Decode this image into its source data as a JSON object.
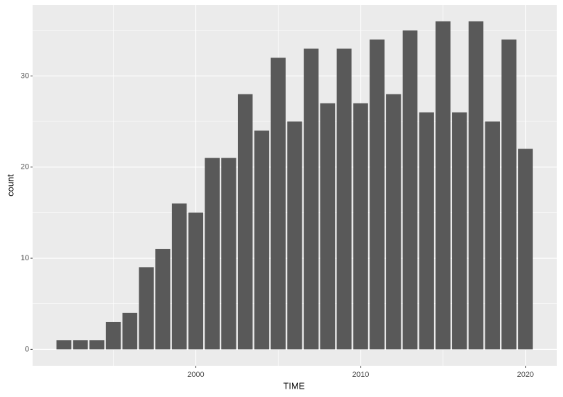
{
  "chart_data": {
    "type": "bar",
    "xlabel": "TIME",
    "ylabel": "count",
    "x": [
      1992,
      1993,
      1994,
      1995,
      1996,
      1997,
      1998,
      1999,
      2000,
      2001,
      2002,
      2003,
      2004,
      2005,
      2006,
      2007,
      2008,
      2009,
      2010,
      2011,
      2012,
      2013,
      2014,
      2015,
      2016,
      2017,
      2018,
      2019,
      2020
    ],
    "values": [
      1,
      1,
      1,
      3,
      4,
      9,
      11,
      16,
      15,
      21,
      21,
      28,
      24,
      32,
      25,
      33,
      27,
      33,
      27,
      34,
      28,
      35,
      26,
      36,
      26,
      36,
      25,
      34,
      22
    ],
    "color": "#595959",
    "xlim": [
      1990.1,
      2021.9
    ],
    "xticks": [
      2000,
      2010,
      2020
    ],
    "xminor": [
      1995,
      2005,
      2015
    ],
    "ylim": [
      -1.8,
      37.8
    ],
    "yticks": [
      0,
      10,
      20,
      30
    ],
    "yminor": [
      5,
      15,
      25,
      35
    ],
    "grid": true
  }
}
